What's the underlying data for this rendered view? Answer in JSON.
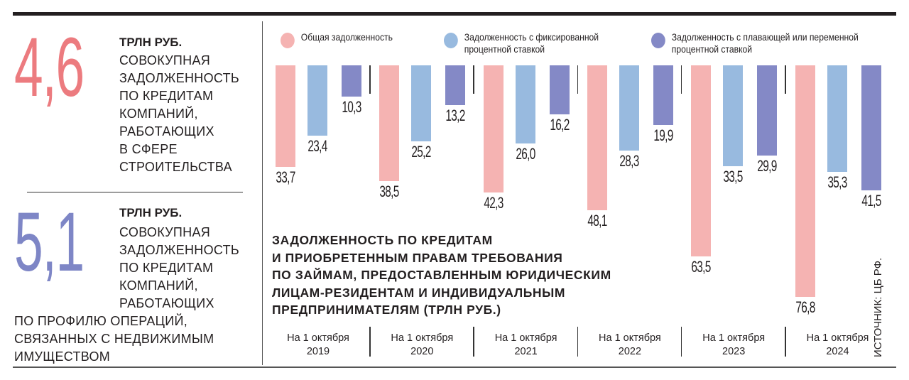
{
  "left": {
    "stat1": {
      "value": "4,6",
      "unit": "ТРЛН РУБ.",
      "lines": [
        "СОВОКУПНАЯ",
        "ЗАДОЛЖЕННОСТЬ",
        "ПО КРЕДИТАМ",
        "КОМПАНИЙ,",
        "РАБОТАЮЩИХ",
        "В СФЕРЕ",
        "СТРОИТЕЛЬСТВА"
      ],
      "color": "#ec7b7f"
    },
    "stat2": {
      "value": "5,1",
      "unit": "ТРЛН РУБ.",
      "lines": [
        "СОВОКУПНАЯ",
        "ЗАДОЛЖЕННОСТЬ",
        "ПО КРЕДИТАМ",
        "КОМПАНИЙ,",
        "РАБОТАЮЩИХ",
        "ПО ПРОФИЛЮ ОПЕРАЦИЙ,",
        "СВЯЗАННЫХ С НЕДВИЖИМЫМ",
        "ИМУЩЕСТВОМ"
      ],
      "color": "#7e86c6"
    }
  },
  "chart_data": {
    "type": "bar",
    "title": "ЗАДОЛЖЕННОСТЬ ПО КРЕДИТАМ И ПРИОБРЕТЕННЫМ ПРАВАМ ТРЕБОВАНИЯ ПО ЗАЙМАМ, ПРЕДОСТАВЛЕННЫМ ЮРИДИЧЕСКИМ ЛИЦАМ-РЕЗИДЕНТАМ И ИНДИВИДУАЛЬНЫМ ПРЕДПРИНИМАТЕЛЯМ (ТРЛН РУБ.)",
    "title_lines": [
      "ЗАДОЛЖЕННОСТЬ ПО КРЕДИТАМ",
      "И ПРИОБРЕТЕННЫМ ПРАВАМ ТРЕБОВАНИЯ",
      "ПО ЗАЙМАМ, ПРЕДОСТАВЛЕННЫМ ЮРИДИЧЕСКИМ",
      "ЛИЦАМ-РЕЗИДЕНТАМ И ИНДИВИДУАЛЬНЫМ",
      "ПРЕДПРИНИМАТЕЛЯМ (ТРЛН РУБ.)"
    ],
    "categories": [
      [
        "На 1 октября",
        "2019"
      ],
      [
        "На 1 октября",
        "2020"
      ],
      [
        "На 1 октября",
        "2021"
      ],
      [
        "На 1 октября",
        "2022"
      ],
      [
        "На 1 октября",
        "2023"
      ],
      [
        "На 1 октября",
        "2024"
      ]
    ],
    "series": [
      {
        "name": "Общая задолженность",
        "color": "#f5b3b2",
        "values": [
          33.7,
          38.5,
          42.3,
          48.1,
          63.5,
          76.8
        ],
        "labels": [
          "33,7",
          "38,5",
          "42,3",
          "48,1",
          "63,5",
          "76,8"
        ]
      },
      {
        "name": "Задолженность с фиксированной процентной ставкой",
        "color": "#98badf",
        "values": [
          23.4,
          25.2,
          26.0,
          28.3,
          33.5,
          35.3
        ],
        "labels": [
          "23,4",
          "25,2",
          "26,0",
          "28,3",
          "33,5",
          "35,3"
        ]
      },
      {
        "name": "Задолженность с плавающей или переменной процентной ставкой",
        "color": "#8489c6",
        "values": [
          10.3,
          13.2,
          16.2,
          19.9,
          29.9,
          41.5
        ],
        "labels": [
          "10,3",
          "13,2",
          "16,2",
          "19,9",
          "29,9",
          "41,5"
        ]
      }
    ],
    "legend": [
      [
        "Общая задолженность"
      ],
      [
        "Задолженность с фиксированной",
        "процентной ставкой"
      ],
      [
        "Задолженность с плавающей или переменной",
        "процентной ставкой"
      ]
    ],
    "orientation": "downward",
    "ylim": [
      0,
      80
    ],
    "source": "ИСТОЧНИК: ЦБ РФ."
  }
}
